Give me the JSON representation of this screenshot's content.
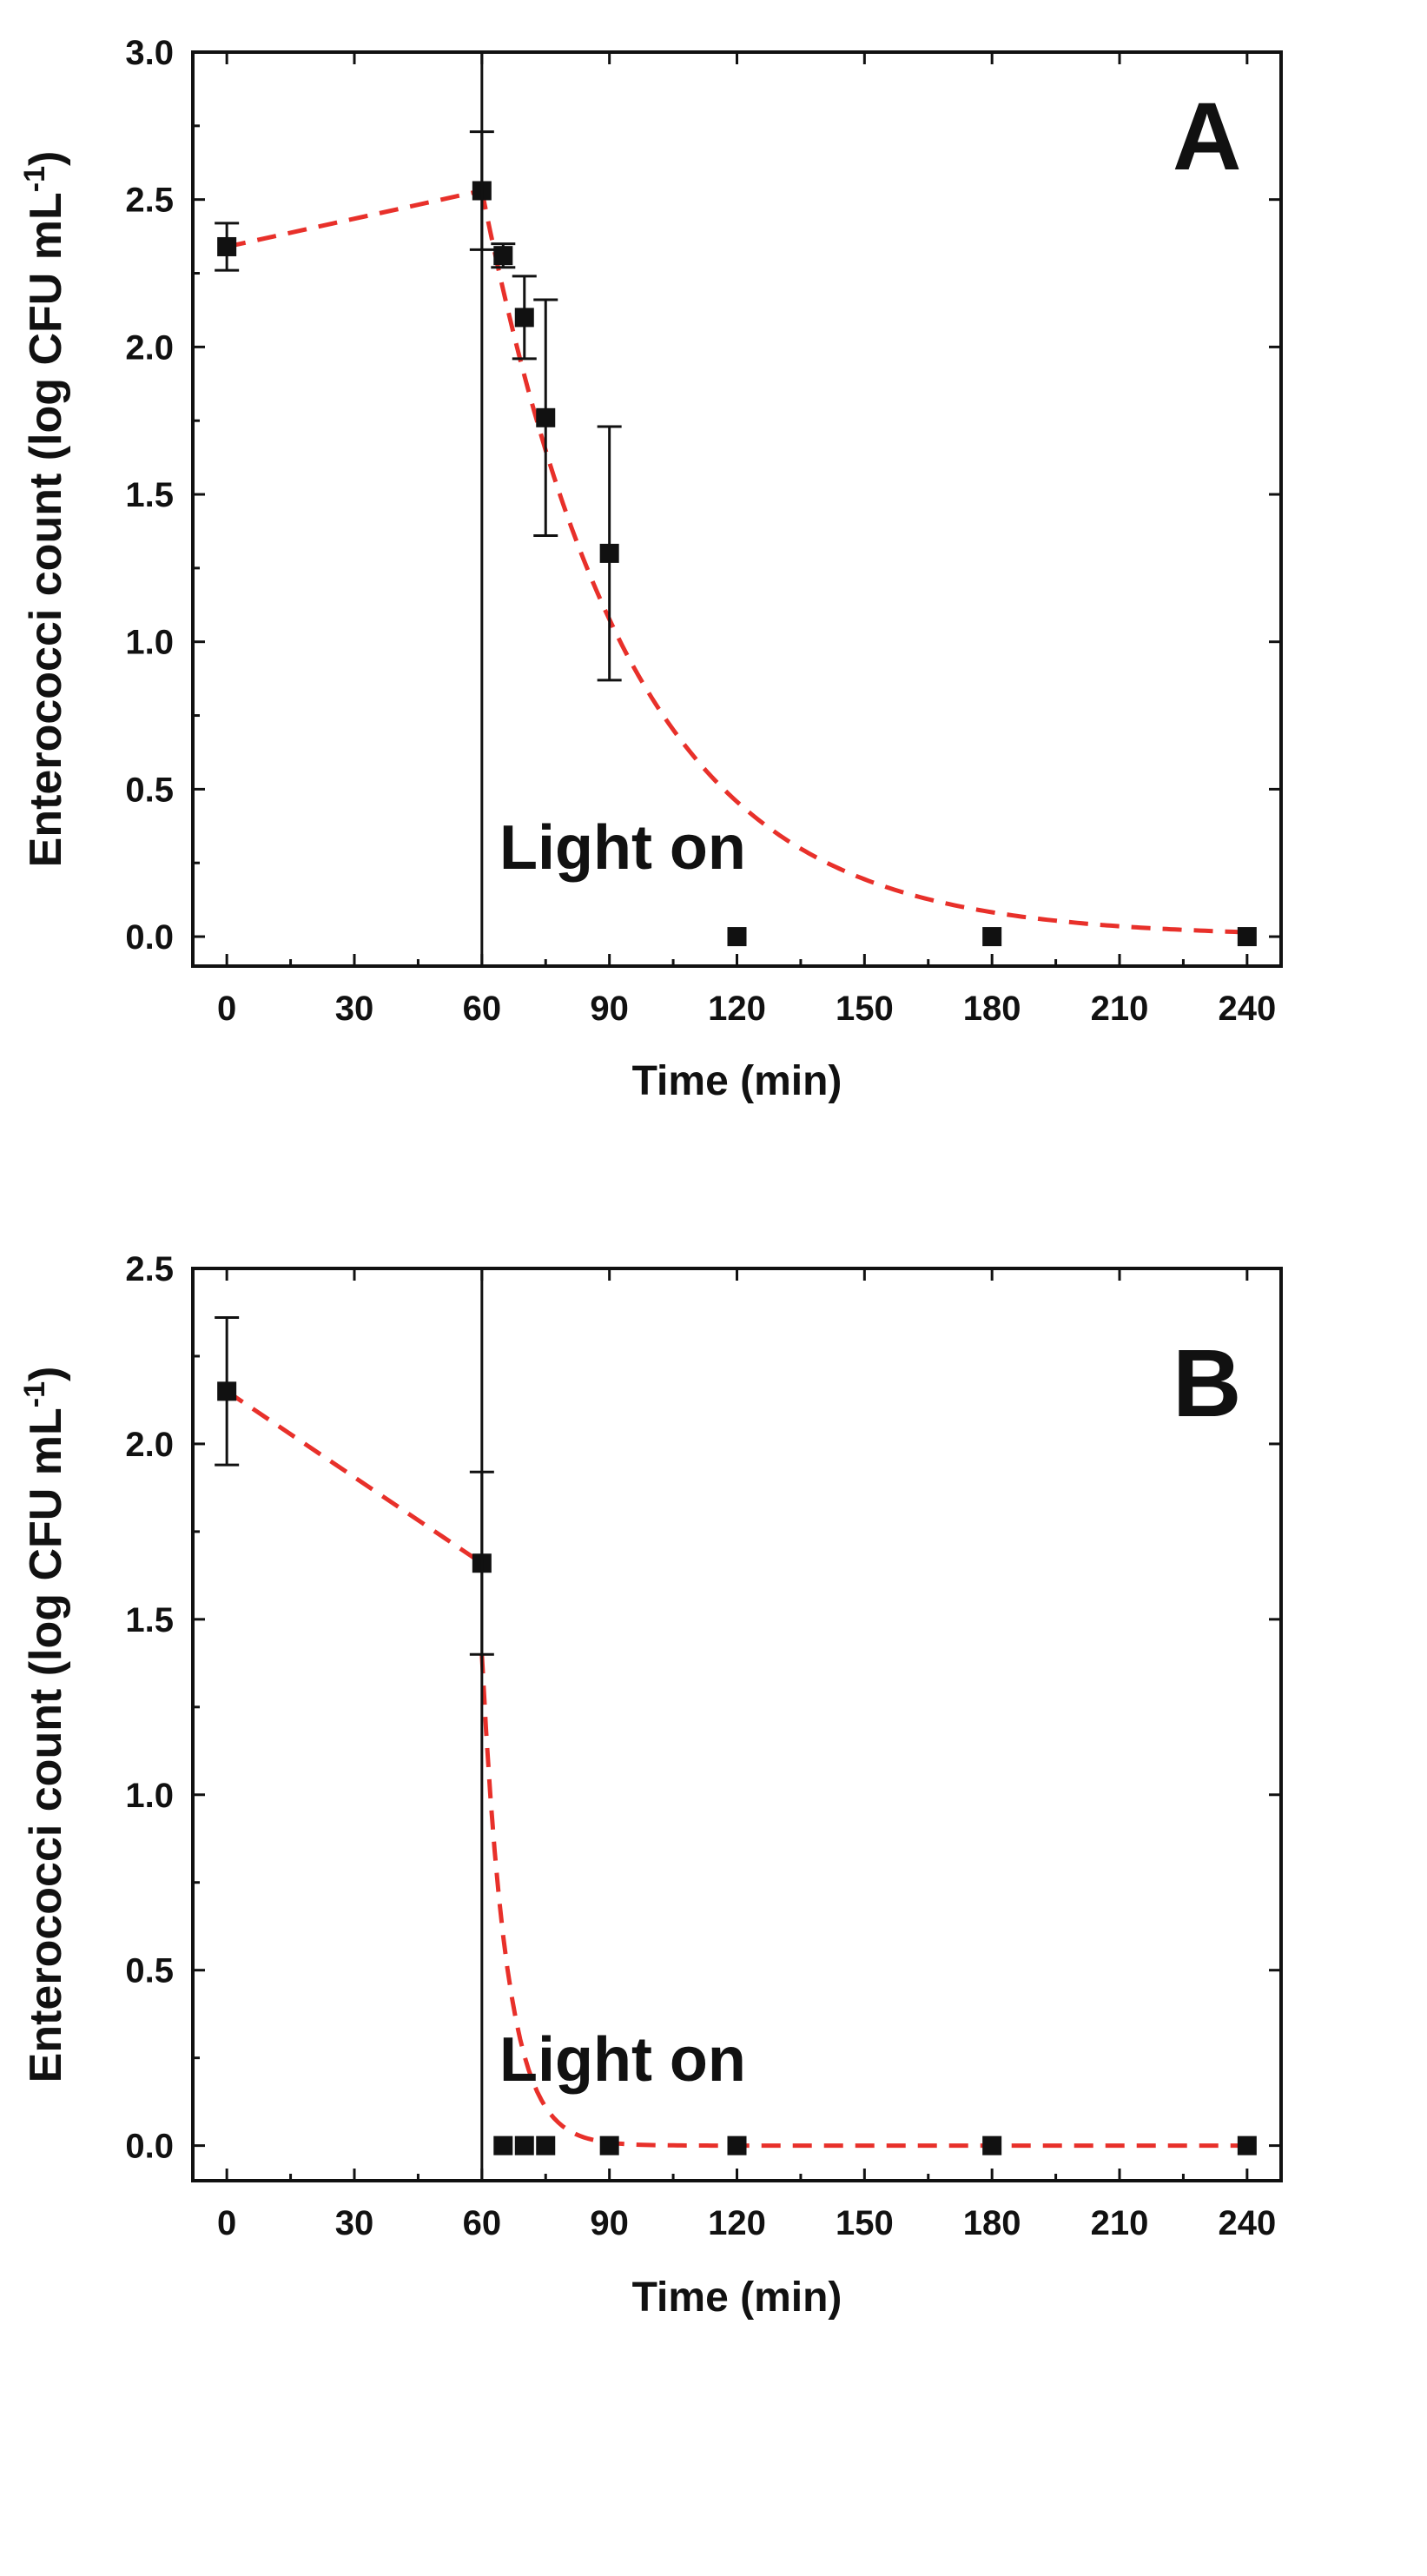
{
  "chart_data": [
    {
      "type": "scatter",
      "panel": "A",
      "xlabel": "Time (min)",
      "ylabel": "Enterococci count (log CFU mL",
      "ylabel_sup": "-1",
      "ylabel_close": ")",
      "annotation": "Light on",
      "light_on_x": 60,
      "xlim": [
        -8,
        248
      ],
      "ylim": [
        -0.1,
        3.0
      ],
      "xticks": [
        0,
        30,
        60,
        90,
        120,
        150,
        180,
        210,
        240
      ],
      "yticks": [
        0.0,
        0.5,
        1.0,
        1.5,
        2.0,
        2.5,
        3.0
      ],
      "ytick_labels": [
        "0.0",
        "0.5",
        "1.0",
        "1.5",
        "2.0",
        "2.5",
        "3.0"
      ],
      "points": {
        "x": [
          0,
          60,
          65,
          70,
          75,
          90,
          120,
          180,
          240
        ],
        "y": [
          2.34,
          2.53,
          2.31,
          2.1,
          1.76,
          1.3,
          0.0,
          0.0,
          0.0
        ],
        "err": [
          0.08,
          0.2,
          0.04,
          0.14,
          0.4,
          0.43,
          0,
          0,
          0
        ]
      },
      "fit": {
        "color": "#e8302a",
        "segment1": {
          "x": [
            0,
            60
          ],
          "y": [
            2.34,
            2.53
          ]
        },
        "decay": {
          "x0": 60,
          "y0": 2.53,
          "k": 0.0285,
          "x_end": 240
        }
      }
    },
    {
      "type": "scatter",
      "panel": "B",
      "xlabel": "Time (min)",
      "ylabel": "Enterococci count (log CFU mL",
      "ylabel_sup": "-1",
      "ylabel_close": ")",
      "annotation": "Light on",
      "light_on_x": 60,
      "xlim": [
        -8,
        248
      ],
      "ylim": [
        -0.1,
        2.5
      ],
      "xticks": [
        0,
        30,
        60,
        90,
        120,
        150,
        180,
        210,
        240
      ],
      "yticks": [
        0.0,
        0.5,
        1.0,
        1.5,
        2.0,
        2.5
      ],
      "ytick_labels": [
        "0.0",
        "0.5",
        "1.0",
        "1.5",
        "2.0",
        "2.5"
      ],
      "points": {
        "x": [
          0,
          60,
          65,
          70,
          75,
          90,
          120,
          180,
          240
        ],
        "y": [
          2.15,
          1.66,
          0.0,
          0.0,
          0.0,
          0.0,
          0.0,
          0.0,
          0.0
        ],
        "err": [
          0.21,
          0.26,
          0,
          0,
          0,
          0,
          0,
          0,
          0
        ]
      },
      "fit": {
        "color": "#e8302a",
        "segment1": {
          "x": [
            0,
            60
          ],
          "y": [
            2.15,
            1.66
          ]
        },
        "decay": {
          "x0": 60,
          "y0": 1.4,
          "k": 0.17,
          "x_end": 240
        }
      }
    }
  ]
}
